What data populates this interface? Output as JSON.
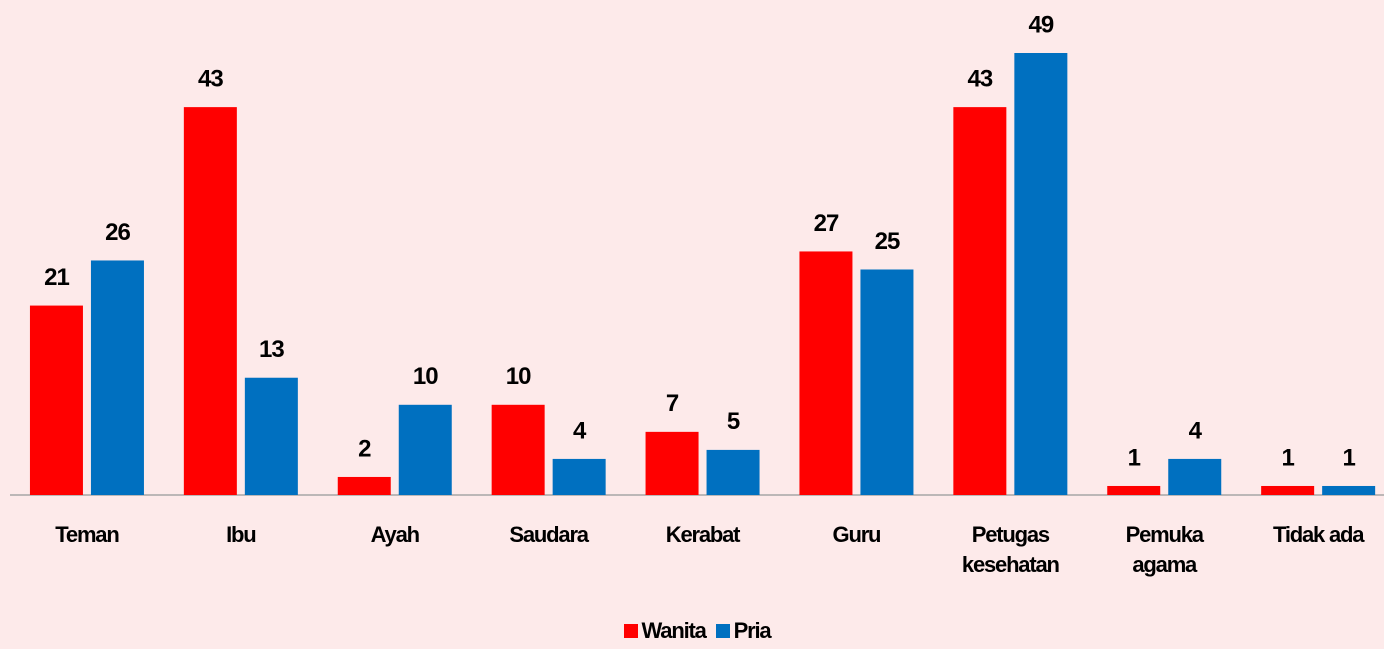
{
  "chart_data": {
    "type": "bar",
    "categories": [
      "Teman",
      "Ibu",
      "Ayah",
      "Saudara",
      "Kerabat",
      "Guru",
      "Petugas kesehatan",
      "Pemuka agama",
      "Tidak ada"
    ],
    "series": [
      {
        "name": "Wanita",
        "color": "#ff0000",
        "values": [
          21,
          43,
          2,
          10,
          7,
          27,
          43,
          1,
          1
        ]
      },
      {
        "name": "Pria",
        "color": "#0070c0",
        "values": [
          26,
          13,
          10,
          4,
          5,
          25,
          49,
          4,
          1
        ]
      }
    ],
    "legend": "bottom"
  }
}
